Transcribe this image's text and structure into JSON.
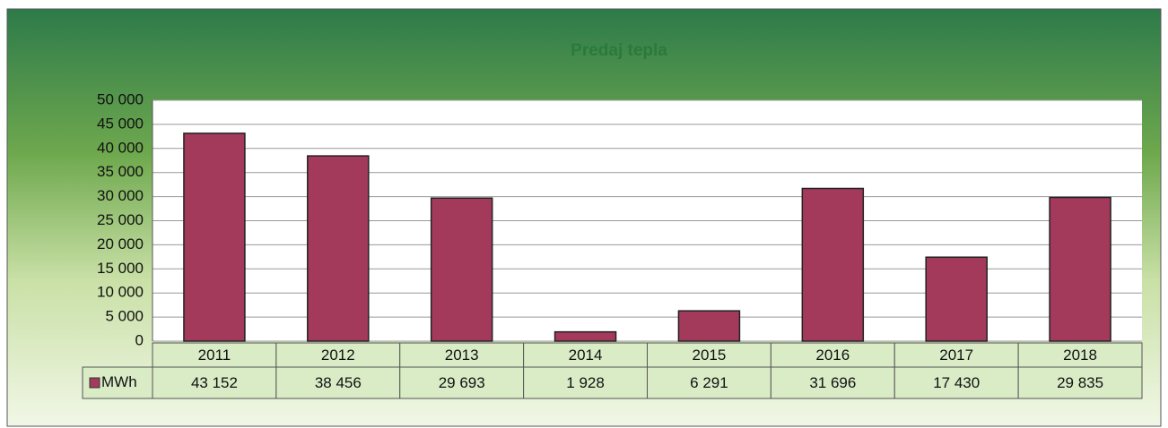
{
  "chart_data": {
    "type": "bar",
    "title": "Predaj tepla",
    "categories": [
      "2011",
      "2012",
      "2013",
      "2014",
      "2015",
      "2016",
      "2017",
      "2018"
    ],
    "series": [
      {
        "name": "MWh",
        "color": "#a33a5c",
        "values": [
          43152,
          38456,
          29693,
          1928,
          6291,
          31696,
          17430,
          29835
        ],
        "value_labels": [
          "43 152",
          "38 456",
          "29 693",
          "1 928",
          "6 291",
          "31 696",
          "17 430",
          "29 835"
        ]
      }
    ],
    "ylim": [
      0,
      50000
    ],
    "yticks": [
      0,
      {
        "value": 5000,
        "label": "5 000"
      },
      {
        "value": 10000,
        "label": "10 000"
      },
      {
        "value": 15000,
        "label": "15 000"
      },
      {
        "value": 20000,
        "label": "20 000"
      },
      {
        "value": 25000,
        "label": "25 000"
      },
      {
        "value": 30000,
        "label": "30 000"
      },
      {
        "value": 35000,
        "label": "35 000"
      },
      {
        "value": 40000,
        "label": "40 000"
      },
      {
        "value": 45000,
        "label": "45 000"
      },
      {
        "value": 50000,
        "label": "50 000"
      }
    ],
    "grid": true
  }
}
